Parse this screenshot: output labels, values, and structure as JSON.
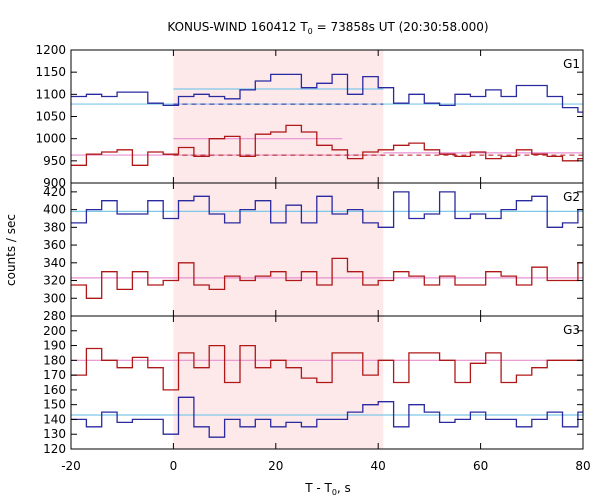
{
  "chart_data": {
    "type": "line",
    "title": "KONUS-WIND 160412 T",
    "title_sub": "0",
    "title_rest": " = 73858s UT (20:30:58.000)",
    "xlabel": "T - T",
    "xlabel_sub": "0",
    "xlabel_rest": ", s",
    "ylabel": "counts / sec",
    "xlim": [
      -20,
      80
    ],
    "xticks": [
      -20,
      0,
      20,
      40,
      60,
      80
    ],
    "shade": [
      0,
      41
    ],
    "colors": {
      "blue": "#2a2aa0",
      "red": "#b01818",
      "cyan": "#7ec8e8",
      "pink": "#e890d0",
      "shade": "#fde8ea"
    },
    "panels": [
      {
        "label": "G1",
        "ylim": [
          900,
          1200
        ],
        "yticks": [
          900,
          950,
          1000,
          1050,
          1100,
          1150,
          1200
        ],
        "step_x": [
          -20,
          -17,
          -14,
          -11,
          -8,
          -5,
          -2,
          1,
          4,
          7,
          10,
          13,
          16,
          19,
          22,
          25,
          28,
          31,
          34,
          37,
          40,
          43,
          46,
          49,
          52,
          55,
          58,
          61,
          64,
          67,
          70,
          73,
          76,
          79,
          80
        ],
        "series": [
          {
            "name": "blue",
            "values": [
              1095,
              1100,
              1095,
              1105,
              1105,
              1080,
              1075,
              1095,
              1100,
              1095,
              1090,
              1110,
              1130,
              1145,
              1145,
              1115,
              1125,
              1145,
              1100,
              1140,
              1115,
              1080,
              1100,
              1080,
              1075,
              1100,
              1095,
              1110,
              1095,
              1120,
              1120,
              1095,
              1070,
              1060
            ]
          },
          {
            "name": "red",
            "values": [
              940,
              965,
              970,
              975,
              940,
              970,
              965,
              980,
              960,
              1000,
              1005,
              960,
              1010,
              1015,
              1030,
              1015,
              985,
              975,
              955,
              970,
              975,
              985,
              990,
              975,
              965,
              960,
              970,
              955,
              960,
              975,
              965,
              960,
              950,
              955
            ]
          }
        ],
        "ref_lines": [
          {
            "color": "cyan",
            "dash": false,
            "segments": [
              [
                -20,
                41,
                1078
              ],
              [
                0,
                41,
                1112
              ],
              [
                41,
                80,
                1078
              ]
            ]
          },
          {
            "color": "blue",
            "dash": true,
            "segments": [
              [
                0,
                41,
                1078
              ]
            ]
          },
          {
            "color": "pink",
            "dash": false,
            "segments": [
              [
                -20,
                41,
                963
              ],
              [
                0,
                33,
                1000
              ],
              [
                41,
                80,
                968
              ]
            ]
          },
          {
            "color": "red",
            "dash": true,
            "segments": [
              [
                0,
                80,
                963
              ]
            ]
          }
        ]
      },
      {
        "label": "G2",
        "ylim": [
          280,
          430
        ],
        "yticks": [
          280,
          300,
          320,
          340,
          360,
          380,
          400,
          420
        ],
        "step_x": [
          -20,
          -17,
          -14,
          -11,
          -8,
          -5,
          -2,
          1,
          4,
          7,
          10,
          13,
          16,
          19,
          22,
          25,
          28,
          31,
          34,
          37,
          40,
          43,
          46,
          49,
          52,
          55,
          58,
          61,
          64,
          67,
          70,
          73,
          76,
          79,
          80
        ],
        "series": [
          {
            "name": "blue",
            "values": [
              385,
              400,
              410,
              395,
              395,
              410,
              390,
              410,
              415,
              395,
              385,
              400,
              410,
              385,
              405,
              385,
              415,
              395,
              400,
              385,
              380,
              420,
              390,
              395,
              420,
              390,
              395,
              390,
              400,
              410,
              415,
              380,
              385,
              400
            ]
          },
          {
            "name": "red",
            "values": [
              315,
              300,
              330,
              310,
              330,
              315,
              320,
              340,
              315,
              310,
              325,
              320,
              325,
              330,
              320,
              330,
              315,
              345,
              330,
              315,
              320,
              330,
              325,
              315,
              325,
              315,
              315,
              330,
              325,
              315,
              335,
              320,
              320,
              340
            ]
          }
        ],
        "ref_lines": [
          {
            "color": "cyan",
            "dash": false,
            "segments": [
              [
                -20,
                80,
                398
              ]
            ]
          },
          {
            "color": "pink",
            "dash": false,
            "segments": [
              [
                -20,
                80,
                323
              ]
            ]
          }
        ]
      },
      {
        "label": "G3",
        "ylim": [
          120,
          210
        ],
        "yticks": [
          120,
          130,
          140,
          150,
          160,
          170,
          180,
          190,
          200
        ],
        "step_x": [
          -20,
          -17,
          -14,
          -11,
          -8,
          -5,
          -2,
          1,
          4,
          7,
          10,
          13,
          16,
          19,
          22,
          25,
          28,
          31,
          34,
          37,
          40,
          43,
          46,
          49,
          52,
          55,
          58,
          61,
          64,
          67,
          70,
          73,
          76,
          79,
          80
        ],
        "series": [
          {
            "name": "red",
            "values": [
              170,
              188,
              180,
              175,
              182,
              175,
              160,
              185,
              175,
              190,
              165,
              190,
              175,
              180,
              175,
              168,
              165,
              185,
              185,
              170,
              180,
              165,
              185,
              185,
              180,
              165,
              178,
              185,
              165,
              170,
              175,
              180,
              180,
              180
            ]
          },
          {
            "name": "blue",
            "values": [
              140,
              135,
              145,
              138,
              140,
              140,
              130,
              155,
              135,
              128,
              140,
              135,
              140,
              135,
              138,
              135,
              140,
              140,
              145,
              150,
              152,
              135,
              150,
              145,
              138,
              140,
              145,
              140,
              140,
              135,
              140,
              145,
              135,
              145
            ]
          }
        ],
        "ref_lines": [
          {
            "color": "pink",
            "dash": false,
            "segments": [
              [
                -20,
                80,
                180
              ]
            ]
          },
          {
            "color": "cyan",
            "dash": false,
            "segments": [
              [
                -20,
                80,
                143
              ]
            ]
          }
        ]
      }
    ]
  }
}
